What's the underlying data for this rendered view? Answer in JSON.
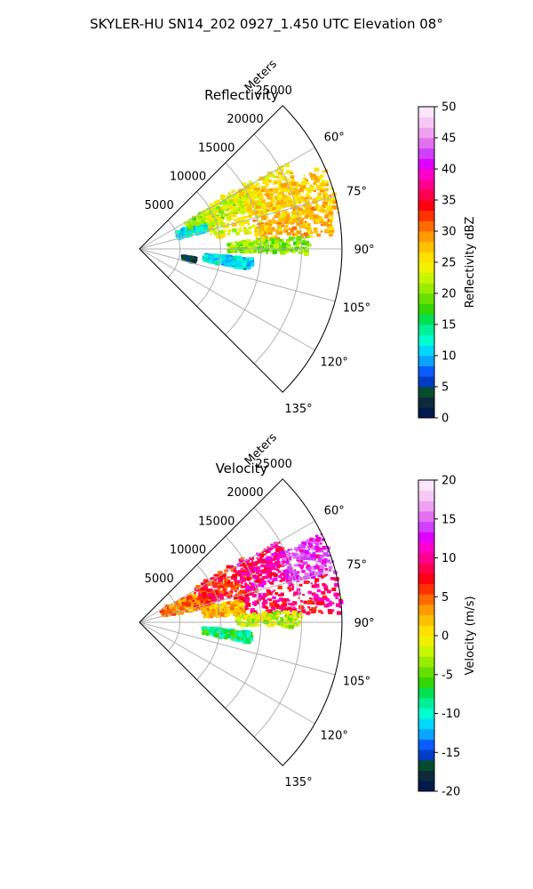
{
  "figure": {
    "suptitle": "SKYLER-HU  SN14_202  0927_1.450 UTC Elevation 08°"
  },
  "chart_data": [
    {
      "type": "heatmap",
      "projection": "polar-sector",
      "title": "Reflectivity",
      "radial_axis_label": "Meters",
      "radial_ticks": [
        5000,
        10000,
        15000,
        20000,
        25000
      ],
      "r_max": 25000,
      "angular_ticks": [
        60,
        75,
        90,
        105,
        120,
        135
      ],
      "angle_range": [
        45,
        135
      ],
      "angular_tick_labels": [
        "60°",
        "75°",
        "90°",
        "105°",
        "120°",
        "135°"
      ],
      "grid": true,
      "colorbar": {
        "label": "Reflectivity dBZ",
        "range": [
          0,
          50
        ],
        "ticks": [
          0,
          5,
          10,
          15,
          20,
          25,
          30,
          35,
          40,
          45,
          50
        ],
        "colors": [
          "#001a4d",
          "#0d2b3a",
          "#064d2e",
          "#003cc8",
          "#0a5cff",
          "#0aa4ff",
          "#00d8ff",
          "#00ffd0",
          "#00f098",
          "#00e050",
          "#33d600",
          "#66e000",
          "#99ec00",
          "#c8f500",
          "#f0f000",
          "#ffe000",
          "#ffc000",
          "#ff9a00",
          "#ff6a00",
          "#ff3200",
          "#ff0010",
          "#ff004e",
          "#ff0090",
          "#ff00cc",
          "#e000ff",
          "#d040ff",
          "#e470f0",
          "#f0a0f0",
          "#f6c8f6",
          "#fbe6fb"
        ]
      },
      "echo_regions": [
        {
          "az": [
            66,
            76
          ],
          "r": [
            5000,
            9500
          ],
          "value": 12
        },
        {
          "az": [
            60,
            70
          ],
          "r": [
            6500,
            15000
          ],
          "value": 21
        },
        {
          "az": [
            58,
            82
          ],
          "r": [
            9000,
            16500
          ],
          "value": 24
        },
        {
          "az": [
            60,
            74
          ],
          "r": [
            14000,
            21000
          ],
          "value": 26
        },
        {
          "az": [
            76,
            86
          ],
          "r": [
            14500,
            24000
          ],
          "value": 28
        },
        {
          "az": [
            66,
            80
          ],
          "r": [
            17000,
            25000
          ],
          "value": 27
        },
        {
          "az": [
            86,
            92
          ],
          "r": [
            11000,
            21000
          ],
          "value": 20
        },
        {
          "az": [
            95,
            101
          ],
          "r": [
            8000,
            14000
          ],
          "value": 11
        },
        {
          "az": [
            100,
            104
          ],
          "r": [
            5500,
            7000
          ],
          "value": 4
        }
      ]
    },
    {
      "type": "heatmap",
      "projection": "polar-sector",
      "title": "Velocity",
      "radial_axis_label": "Meters",
      "radial_ticks": [
        5000,
        10000,
        15000,
        20000,
        25000
      ],
      "r_max": 25000,
      "angular_ticks": [
        60,
        75,
        90,
        105,
        120,
        135
      ],
      "angle_range": [
        45,
        135
      ],
      "angular_tick_labels": [
        "60°",
        "75°",
        "90°",
        "105°",
        "120°",
        "135°"
      ],
      "grid": true,
      "colorbar": {
        "label": "Velocity (m/s)",
        "range": [
          -20,
          20
        ],
        "ticks": [
          -20,
          -15,
          -10,
          -5,
          0,
          5,
          10,
          15,
          20
        ],
        "colors": [
          "#001a4d",
          "#0d2b3a",
          "#064d2e",
          "#003cc8",
          "#0a5cff",
          "#0aa4ff",
          "#00d8ff",
          "#00ffd0",
          "#00f098",
          "#00e050",
          "#33d600",
          "#66e000",
          "#99ec00",
          "#c8f500",
          "#f0f000",
          "#ffe000",
          "#ffc000",
          "#ff9a00",
          "#ff6a00",
          "#ff3200",
          "#ff0010",
          "#ff004e",
          "#ff0090",
          "#ff00cc",
          "#e000ff",
          "#d040ff",
          "#e470f0",
          "#f0a0f0",
          "#f6c8f6",
          "#fbe6fb"
        ]
      },
      "echo_regions": [
        {
          "az": [
            62,
            78
          ],
          "r": [
            3000,
            9000
          ],
          "value": 4
        },
        {
          "az": [
            58,
            76
          ],
          "r": [
            8000,
            15000
          ],
          "value": 7
        },
        {
          "az": [
            60,
            74
          ],
          "r": [
            14000,
            20000
          ],
          "value": 10
        },
        {
          "az": [
            64,
            76
          ],
          "r": [
            19000,
            25000
          ],
          "value": 13
        },
        {
          "az": [
            76,
            88
          ],
          "r": [
            12000,
            25000
          ],
          "value": 9
        },
        {
          "az": [
            78,
            86
          ],
          "r": [
            8000,
            13000
          ],
          "value": 2
        },
        {
          "az": [
            86,
            92
          ],
          "r": [
            12000,
            20000
          ],
          "value": -2
        },
        {
          "az": [
            95,
            101
          ],
          "r": [
            8000,
            14000
          ],
          "value": -8
        }
      ]
    }
  ]
}
